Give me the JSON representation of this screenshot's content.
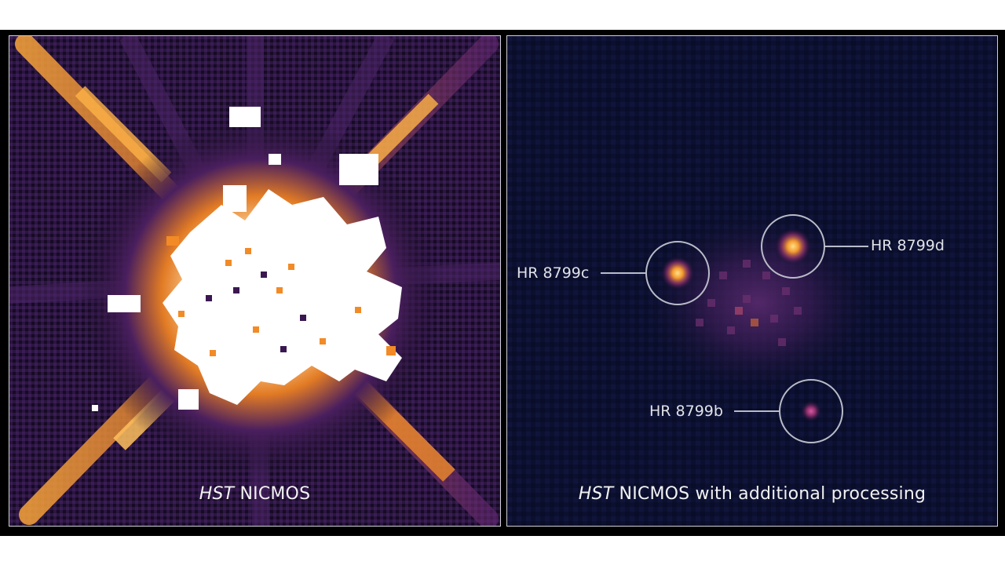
{
  "left_panel": {
    "caption_italic": "HST",
    "caption_rest": " NICMOS"
  },
  "right_panel": {
    "caption_italic": "HST",
    "caption_rest": " NICMOS with additional processing",
    "planets": [
      {
        "label": "HR 8799c"
      },
      {
        "label": "HR 8799d"
      },
      {
        "label": "HR 8799b"
      }
    ]
  },
  "colors": {
    "left_background": "#1c0f2b",
    "right_background": "#0b0f2c",
    "glow_orange": "#f39a2e",
    "glow_purple": "#5a2a7a",
    "saturated_core": "#ffffff",
    "marker_circle": "#b9bcc8"
  }
}
